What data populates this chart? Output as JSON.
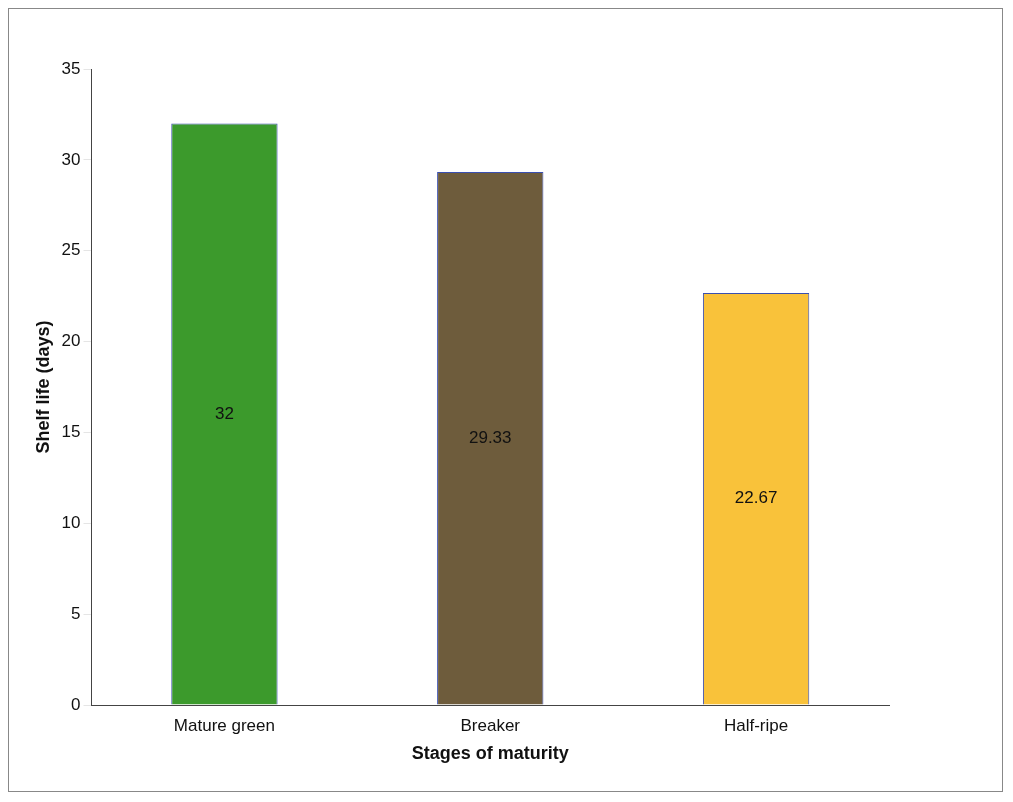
{
  "chart_data": {
    "type": "bar",
    "xlabel": "Stages of maturity",
    "ylabel": "Shelf life (days)",
    "categories": [
      "Mature green",
      "Breaker",
      "Half-ripe"
    ],
    "values": [
      32,
      29.33,
      22.67
    ],
    "colors": [
      "#3c9a2c",
      "#6e5c3c",
      "#f9c23a"
    ],
    "ylim": [
      0,
      35
    ],
    "yticks": [
      0,
      5,
      10,
      15,
      20,
      25,
      30,
      35
    ],
    "grid": false,
    "legend": false,
    "data_labels": true
  }
}
